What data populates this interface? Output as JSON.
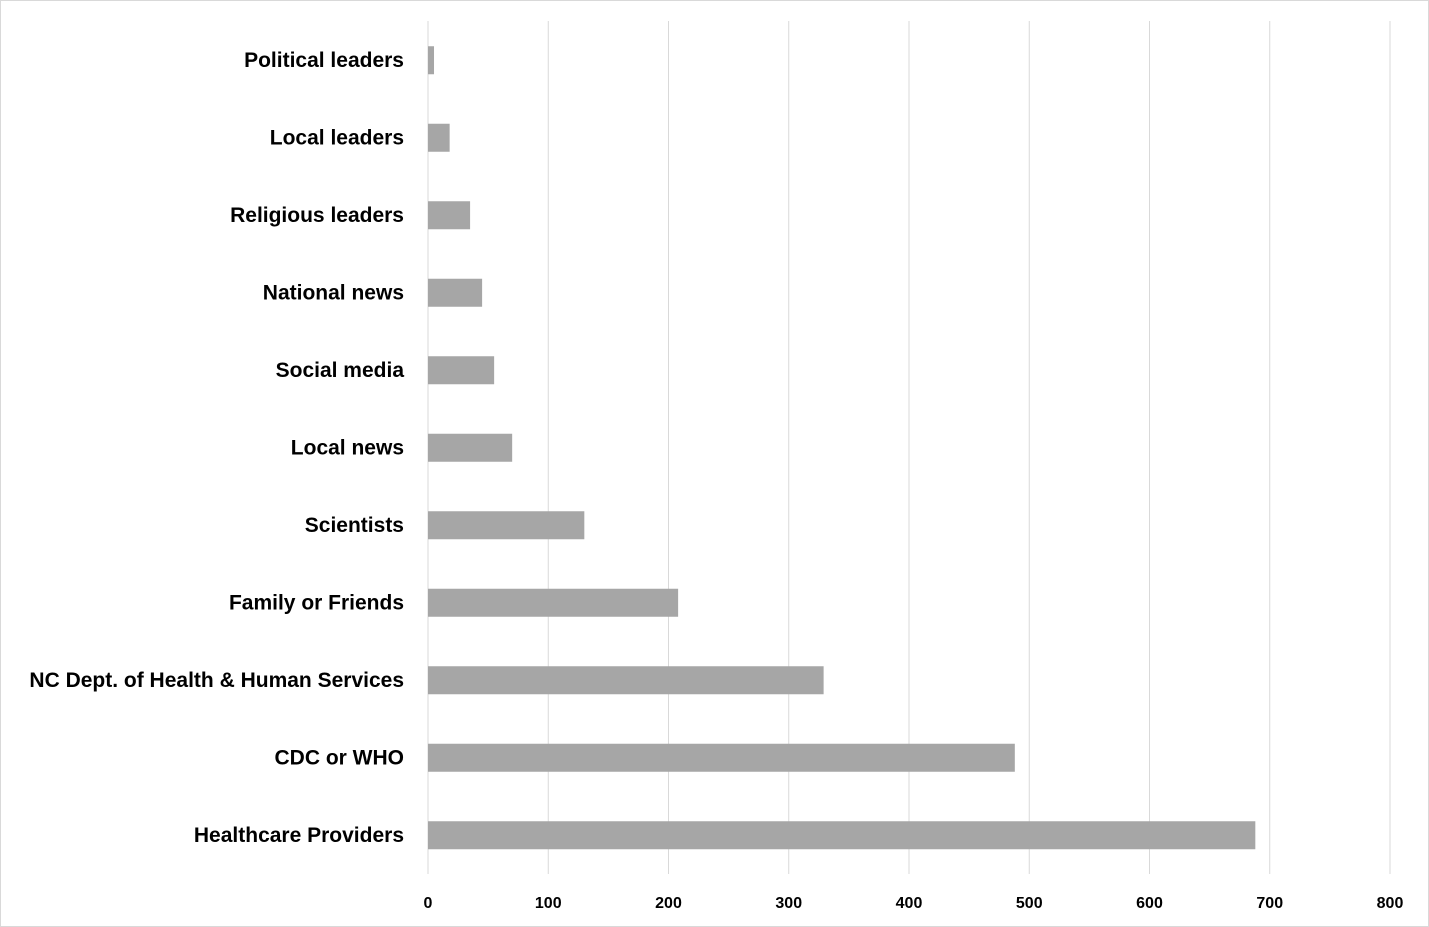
{
  "chart_data": {
    "type": "bar",
    "orientation": "horizontal",
    "title": "",
    "xlabel": "",
    "ylabel": "",
    "categories": [
      "Political leaders",
      "Local leaders",
      "Religious leaders",
      "National news",
      "Social media",
      "Local news",
      "Scientists",
      "Family or Friends",
      "NC Dept. of Health & Human Services",
      "CDC or WHO",
      "Healthcare Providers"
    ],
    "values": [
      5,
      18,
      35,
      45,
      55,
      70,
      130,
      208,
      329,
      488,
      688
    ],
    "xlim": [
      0,
      800
    ],
    "xticks": [
      "0",
      "100",
      "200",
      "300",
      "400",
      "500",
      "600",
      "700",
      "800"
    ],
    "grid": "vertical",
    "legend": "none",
    "bar_color": "#a6a6a6",
    "grid_color": "#d9d9d9"
  }
}
